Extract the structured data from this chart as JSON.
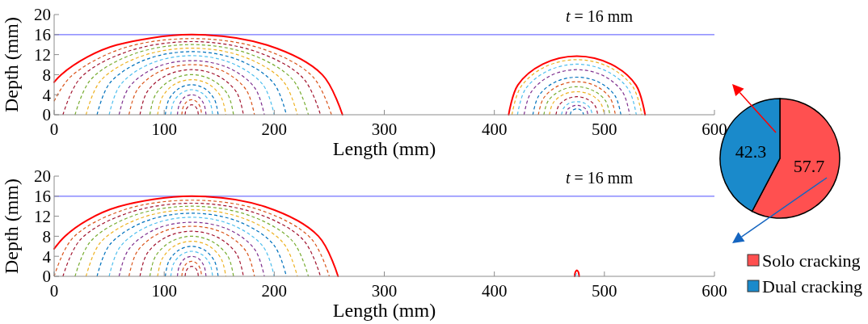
{
  "chart_data": [
    {
      "type": "line",
      "xlabel": "Length (mm)",
      "ylabel": "Depth (mm)",
      "xlim": [
        0,
        600
      ],
      "ylim": [
        0,
        20
      ],
      "xticks": [
        0,
        100,
        200,
        300,
        400,
        500,
        600
      ],
      "yticks": [
        0,
        4,
        8,
        12,
        16,
        20
      ],
      "line_style": "dashed",
      "annotations": [
        "t = 16 mm"
      ],
      "ref_lines": [
        {
          "axis": "y",
          "value": 16,
          "color": "#7373ff"
        }
      ],
      "series": [
        {
          "color": "#ff0000",
          "line_style": "solid",
          "x": [
            0,
            6.4,
            30,
            56.5,
            125,
            193.5,
            243.6,
            262
          ],
          "values": [
            6.5,
            8,
            11.5,
            13.9,
            16,
            13.9,
            8,
            0
          ]
        },
        {
          "color": "#d95319",
          "x": [
            0,
            15,
            61.5,
            125,
            188.5,
            235,
            252
          ],
          "values": [
            2.7,
            7.6,
            13.2,
            15.2,
            13.2,
            7.6,
            0
          ]
        },
        {
          "color": "#a2142f",
          "x": [
            8,
            23.7,
            66.5,
            125,
            183.5,
            226.3,
            242
          ],
          "values": [
            0,
            7.3,
            12.6,
            14.6,
            12.6,
            7.3,
            0
          ]
        },
        {
          "color": "#77ac30",
          "x": [
            19,
            33.2,
            72,
            125,
            178,
            216.8,
            231
          ],
          "values": [
            0,
            7,
            12.1,
            14,
            12.1,
            7,
            0
          ]
        },
        {
          "color": "#edb120",
          "x": [
            29,
            41.9,
            77,
            125,
            173,
            208.1,
            221
          ],
          "values": [
            0,
            6.7,
            11.5,
            13.3,
            11.5,
            6.7,
            0
          ]
        },
        {
          "color": "#0072bd",
          "x": [
            39,
            50.5,
            82,
            125,
            168,
            199.5,
            211
          ],
          "values": [
            0,
            6.3,
            10.9,
            12.6,
            10.9,
            6.3,
            0
          ]
        },
        {
          "color": "#4dbeee",
          "x": [
            50,
            60,
            87.5,
            125,
            162.5,
            190,
            200
          ],
          "values": [
            0,
            5.9,
            10.2,
            11.8,
            10.2,
            5.9,
            0
          ]
        },
        {
          "color": "#7e2f8e",
          "x": [
            59,
            67.8,
            92,
            125,
            158,
            182.2,
            191
          ],
          "values": [
            0,
            5.4,
            9.4,
            10.8,
            9.4,
            5.4,
            0
          ]
        },
        {
          "color": "#d95319",
          "x": [
            68,
            75.6,
            96.5,
            125,
            153.5,
            174.4,
            182
          ],
          "values": [
            0,
            5,
            8.7,
            10,
            8.7,
            5,
            0
          ]
        },
        {
          "color": "#a2142f",
          "x": [
            78,
            84.3,
            101.5,
            125,
            148.5,
            165.7,
            172
          ],
          "values": [
            0,
            4.5,
            7.8,
            9,
            7.8,
            4.5,
            0
          ]
        },
        {
          "color": "#77ac30",
          "x": [
            87,
            92.1,
            106,
            125,
            144,
            157.9,
            163
          ],
          "values": [
            0,
            4,
            6.9,
            8,
            6.9,
            4,
            0
          ]
        },
        {
          "color": "#edb120",
          "x": [
            94,
            98.2,
            109.5,
            125,
            140.5,
            151.8,
            156
          ],
          "values": [
            0,
            3.5,
            6.1,
            7,
            6.1,
            3.5,
            0
          ]
        },
        {
          "color": "#0072bd",
          "x": [
            101,
            104.2,
            113,
            125,
            137,
            145.8,
            149
          ],
          "values": [
            0,
            3,
            5.2,
            6,
            5.2,
            3,
            0
          ]
        },
        {
          "color": "#4dbeee",
          "x": [
            106,
            108.5,
            115.5,
            125,
            134.5,
            141.5,
            144
          ],
          "values": [
            0,
            2.5,
            4.3,
            5,
            4.3,
            2.5,
            0
          ]
        },
        {
          "color": "#7e2f8e",
          "x": [
            112,
            113.7,
            118.5,
            125,
            131.5,
            136.3,
            138
          ],
          "values": [
            0,
            2,
            3.5,
            4,
            3.5,
            2,
            0
          ]
        },
        {
          "color": "#d95319",
          "x": [
            116,
            117.2,
            120.5,
            125,
            129.5,
            132.8,
            134
          ],
          "values": [
            0,
            1.5,
            2.6,
            3,
            2.6,
            1.5,
            0
          ]
        },
        {
          "color": "#a2142f",
          "x": [
            119,
            119.8,
            122,
            125,
            128,
            130.2,
            131
          ],
          "values": [
            0,
            1,
            1.7,
            2,
            1.7,
            1,
            0
          ]
        },
        {
          "color": "#ff0000",
          "line_style": "solid",
          "x": [
            413,
            421.3,
            444,
            475,
            506,
            528.7,
            537
          ],
          "values": [
            0,
            5.9,
            10.1,
            11.7,
            10.1,
            5.9,
            0
          ]
        },
        {
          "color": "#edb120",
          "x": [
            416,
            423.9,
            445.5,
            475,
            504.5,
            526.1,
            534
          ],
          "values": [
            0,
            5.5,
            9.5,
            11,
            9.5,
            5.5,
            0
          ]
        },
        {
          "color": "#4dbeee",
          "x": [
            421,
            428.2,
            448,
            475,
            502,
            521.8,
            529
          ],
          "values": [
            0,
            5.1,
            8.7,
            10.1,
            8.7,
            5.1,
            0
          ]
        },
        {
          "color": "#7e2f8e",
          "x": [
            427,
            433.4,
            451,
            475,
            499,
            516.6,
            523
          ],
          "values": [
            0,
            4.5,
            7.8,
            9,
            7.8,
            4.5,
            0
          ]
        },
        {
          "color": "#0072bd",
          "x": [
            435,
            440.4,
            455,
            475,
            495,
            509.6,
            515
          ],
          "values": [
            0,
            3.8,
            6.5,
            7.5,
            6.5,
            3.8,
            0
          ]
        },
        {
          "color": "#d95319",
          "x": [
            440,
            444.7,
            457.5,
            475,
            492.5,
            505.3,
            510
          ],
          "values": [
            0,
            3.3,
            5.7,
            6.6,
            5.7,
            3.3,
            0
          ]
        },
        {
          "color": "#77ac30",
          "x": [
            445,
            449,
            460,
            475,
            490,
            501,
            505
          ],
          "values": [
            0,
            2.8,
            4.8,
            5.6,
            4.8,
            2.8,
            0
          ]
        },
        {
          "color": "#edb120",
          "x": [
            450,
            453.3,
            462.5,
            475,
            487.5,
            496.7,
            500
          ],
          "values": [
            0,
            2.3,
            4,
            4.6,
            4,
            2.3,
            0
          ]
        },
        {
          "color": "#a2142f",
          "x": [
            456,
            458.5,
            465.5,
            475,
            484.5,
            491.5,
            494
          ],
          "values": [
            0,
            1.8,
            3.1,
            3.6,
            3.1,
            1.8,
            0
          ]
        },
        {
          "color": "#4dbeee",
          "x": [
            461,
            462.9,
            468,
            475,
            482,
            487.1,
            489
          ],
          "values": [
            0,
            1.3,
            2.3,
            2.6,
            2.3,
            1.3,
            0
          ]
        },
        {
          "color": "#7e2f8e",
          "x": [
            465,
            466.3,
            470,
            475,
            480,
            483.7,
            485
          ],
          "values": [
            0,
            1,
            1.6,
            1.9,
            1.6,
            1,
            0
          ]
        },
        {
          "color": "#0072bd",
          "x": [
            469,
            469.8,
            472,
            475,
            478,
            480.2,
            481
          ],
          "values": [
            0,
            0.6,
            1,
            1.2,
            1,
            0.6,
            0
          ]
        }
      ]
    },
    {
      "type": "line",
      "xlabel": "Length (mm)",
      "ylabel": "Depth (mm)",
      "xlim": [
        0,
        600
      ],
      "ylim": [
        0,
        20
      ],
      "xticks": [
        0,
        100,
        200,
        300,
        400,
        500,
        600
      ],
      "yticks": [
        0,
        4,
        8,
        12,
        16,
        20
      ],
      "line_style": "dashed",
      "annotations": [
        "t = 16 mm"
      ],
      "ref_lines": [
        {
          "axis": "y",
          "value": 16,
          "color": "#7373ff"
        }
      ],
      "series": [
        {
          "color": "#ff0000",
          "line_style": "solid",
          "x": [
            0,
            9.8,
            30,
            58.5,
            125,
            191.5,
            240.2,
            258
          ],
          "values": [
            5.5,
            8,
            11.2,
            13.9,
            16,
            13.9,
            8,
            0
          ]
        },
        {
          "color": "#d95319",
          "x": [
            0,
            16.7,
            62.5,
            125,
            187.5,
            233.3,
            250
          ],
          "values": [
            0,
            7.6,
            13.2,
            15.2,
            13.2,
            7.6,
            0
          ]
        },
        {
          "color": "#a2142f",
          "x": [
            8,
            23.7,
            66.5,
            125,
            183.5,
            226.3,
            242
          ],
          "values": [
            0,
            7.3,
            12.6,
            14.6,
            12.6,
            7.3,
            0
          ]
        },
        {
          "color": "#77ac30",
          "x": [
            19,
            33.2,
            72,
            125,
            178,
            216.8,
            231
          ],
          "values": [
            0,
            7,
            12.1,
            14,
            12.1,
            7,
            0
          ]
        },
        {
          "color": "#edb120",
          "x": [
            29,
            41.9,
            77,
            125,
            173,
            208.1,
            221
          ],
          "values": [
            0,
            6.7,
            11.5,
            13.3,
            11.5,
            6.7,
            0
          ]
        },
        {
          "color": "#0072bd",
          "x": [
            39,
            50.5,
            82,
            125,
            168,
            199.5,
            211
          ],
          "values": [
            0,
            6.3,
            10.9,
            12.6,
            10.9,
            6.3,
            0
          ]
        },
        {
          "color": "#4dbeee",
          "x": [
            50,
            60,
            87.5,
            125,
            162.5,
            190,
            200
          ],
          "values": [
            0,
            5.9,
            10.2,
            11.8,
            10.2,
            5.9,
            0
          ]
        },
        {
          "color": "#7e2f8e",
          "x": [
            59,
            67.8,
            92,
            125,
            158,
            182.2,
            191
          ],
          "values": [
            0,
            5.4,
            9.4,
            10.8,
            9.4,
            5.4,
            0
          ]
        },
        {
          "color": "#d95319",
          "x": [
            68,
            75.6,
            96.5,
            125,
            153.5,
            174.4,
            182
          ],
          "values": [
            0,
            5,
            8.7,
            10,
            8.7,
            5,
            0
          ]
        },
        {
          "color": "#a2142f",
          "x": [
            78,
            84.3,
            101.5,
            125,
            148.5,
            165.7,
            172
          ],
          "values": [
            0,
            4.5,
            7.8,
            9,
            7.8,
            4.5,
            0
          ]
        },
        {
          "color": "#77ac30",
          "x": [
            87,
            92.1,
            106,
            125,
            144,
            157.9,
            163
          ],
          "values": [
            0,
            4,
            6.9,
            8,
            6.9,
            4,
            0
          ]
        },
        {
          "color": "#edb120",
          "x": [
            94,
            98.2,
            109.5,
            125,
            140.5,
            151.8,
            156
          ],
          "values": [
            0,
            3.5,
            6.1,
            7,
            6.1,
            3.5,
            0
          ]
        },
        {
          "color": "#0072bd",
          "x": [
            101,
            104.2,
            113,
            125,
            137,
            145.8,
            149
          ],
          "values": [
            0,
            3,
            5.2,
            6,
            5.2,
            3,
            0
          ]
        },
        {
          "color": "#4dbeee",
          "x": [
            106,
            108.5,
            115.5,
            125,
            134.5,
            141.5,
            144
          ],
          "values": [
            0,
            2.5,
            4.3,
            5,
            4.3,
            2.5,
            0
          ]
        },
        {
          "color": "#7e2f8e",
          "x": [
            112,
            113.7,
            118.5,
            125,
            131.5,
            136.3,
            138
          ],
          "values": [
            0,
            2,
            3.5,
            4,
            3.5,
            2,
            0
          ]
        },
        {
          "color": "#d95319",
          "x": [
            116,
            117.2,
            120.5,
            125,
            129.5,
            132.8,
            134
          ],
          "values": [
            0,
            1.5,
            2.6,
            3,
            2.6,
            1.5,
            0
          ]
        },
        {
          "color": "#a2142f",
          "x": [
            119,
            119.8,
            122,
            125,
            128,
            130.2,
            131
          ],
          "values": [
            0,
            1,
            1.7,
            2,
            1.7,
            1,
            0
          ]
        },
        {
          "color": "#ff0000",
          "line_style": "solid",
          "x": [
            473,
            473.3,
            474,
            475,
            476,
            476.7,
            477
          ],
          "values": [
            0,
            0.6,
            1,
            1.2,
            1,
            0.6,
            0
          ]
        },
        {
          "color": "#4dbeee",
          "x": [
            474,
            474.1,
            474.5,
            475,
            475.5,
            475.9,
            476
          ],
          "values": [
            0,
            0.3,
            0.5,
            0.6,
            0.5,
            0.3,
            0
          ]
        }
      ]
    },
    {
      "type": "pie",
      "categories": [
        "Solo cracking",
        "Dual cracking"
      ],
      "values": [
        57.7,
        42.3
      ],
      "colors": [
        "#ff5050",
        "#1a8acb"
      ],
      "data_labels": true,
      "legend": "bottom"
    }
  ]
}
